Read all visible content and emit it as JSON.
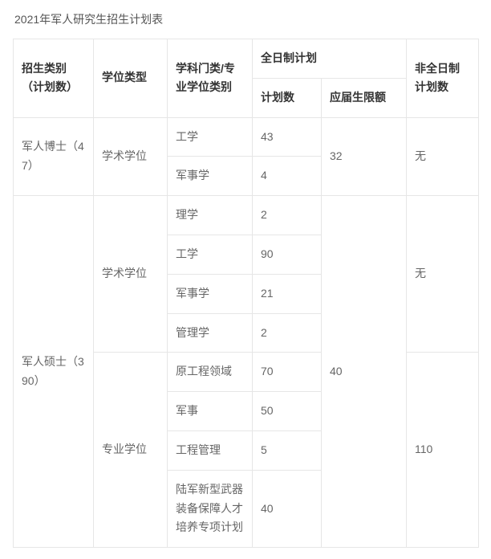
{
  "title": "2021年军人研究生招生计划表",
  "headers": {
    "col1": "招生类别（计划数）",
    "col2": "学位类型",
    "col3": "学科门类/专业学位类别",
    "col4_group": "全日制计划",
    "col4a": "计划数",
    "col4b": "应届生限额",
    "col5": "非全日制计划数"
  },
  "rows": {
    "r1": {
      "category": "军人博士（47）",
      "degree": "学术学位",
      "discipline": "工学",
      "plan": "43",
      "fresh_limit": "32",
      "parttime": "无"
    },
    "r2": {
      "discipline": "军事学",
      "plan": "4"
    },
    "r3": {
      "category": "军人硕士（390）",
      "degree": "学术学位",
      "discipline": "理学",
      "plan": "2",
      "fresh_limit": "40",
      "parttime": "无"
    },
    "r4": {
      "discipline": "工学",
      "plan": "90"
    },
    "r5": {
      "discipline": "军事学",
      "plan": "21"
    },
    "r6": {
      "discipline": "管理学",
      "plan": "2"
    },
    "r7": {
      "degree": "专业学位",
      "discipline": "原工程领域",
      "plan": "70",
      "parttime": "110"
    },
    "r8": {
      "discipline": "军事",
      "plan": "50"
    },
    "r9": {
      "discipline": "工程管理",
      "plan": "5"
    },
    "r10": {
      "discipline": "陆军新型武器装备保障人才培养专项计划",
      "plan": "40"
    }
  }
}
